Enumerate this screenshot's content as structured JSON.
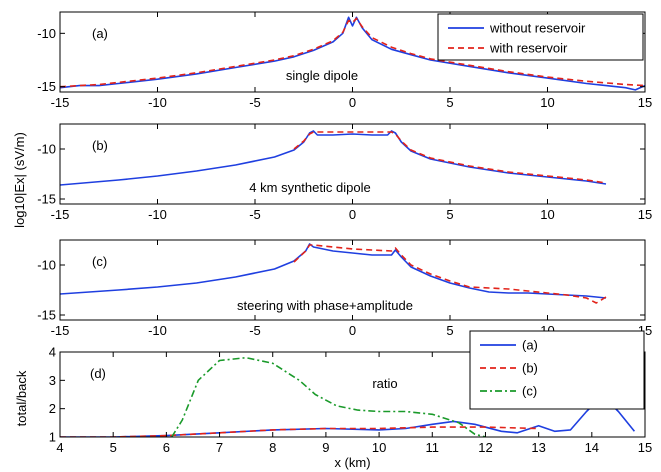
{
  "colors": {
    "blue": "#1f3fe0",
    "red": "#e2231a",
    "green": "#1a9a2a",
    "axis": "#000000"
  },
  "figure": {
    "ylabel_shared": "log10|Ex| (sV/m)"
  },
  "chart_data": [
    {
      "id": "a",
      "type": "line",
      "panel_label": "(a)",
      "annotation": "single dipole",
      "xlim": [
        -15,
        15
      ],
      "ylim": [
        -15.5,
        -8
      ],
      "xticks": [
        -15,
        -10,
        -5,
        0,
        5,
        10,
        15
      ],
      "yticks": [
        -15,
        -10
      ],
      "legend": {
        "placement": "top-right",
        "entries": [
          "without reservoir",
          "with reservoir"
        ]
      },
      "series": [
        {
          "name": "without reservoir",
          "style": "solid",
          "color": "blue",
          "x": [
            -15,
            -14,
            -13,
            -12,
            -10,
            -8,
            -6,
            -4,
            -3,
            -2,
            -1,
            -0.5,
            -0.2,
            0,
            0.2,
            0.5,
            1,
            2,
            3,
            4,
            6,
            8,
            10,
            12,
            13,
            14,
            14.5,
            15
          ],
          "y": [
            -15.1,
            -14.9,
            -14.9,
            -14.7,
            -14.3,
            -13.8,
            -13.2,
            -12.6,
            -12.2,
            -11.6,
            -10.8,
            -10.0,
            -8.5,
            -9.3,
            -8.5,
            -9.5,
            -10.6,
            -11.5,
            -12.0,
            -12.5,
            -13.1,
            -13.7,
            -14.2,
            -14.7,
            -14.9,
            -15.1,
            -15.3,
            -14.9
          ]
        },
        {
          "name": "with reservoir",
          "style": "dashed",
          "color": "red",
          "x": [
            -15,
            -13,
            -12,
            -10,
            -8,
            -6,
            -4,
            -3,
            -2,
            -1,
            -0.5,
            -0.2,
            0,
            0.2,
            0.5,
            1,
            2,
            3,
            4,
            6,
            8,
            10,
            12,
            14,
            15
          ],
          "y": [
            -15.0,
            -14.8,
            -14.6,
            -14.2,
            -13.7,
            -13.1,
            -12.5,
            -12.1,
            -11.5,
            -10.7,
            -9.9,
            -8.8,
            -9.0,
            -8.6,
            -9.4,
            -10.4,
            -11.3,
            -11.9,
            -12.4,
            -13.0,
            -13.6,
            -14.1,
            -14.5,
            -14.8,
            -14.9
          ]
        }
      ]
    },
    {
      "id": "b",
      "type": "line",
      "panel_label": "(b)",
      "annotation": "4 km synthetic dipole",
      "xlim": [
        -15,
        15
      ],
      "ylim": [
        -15.5,
        -7.5
      ],
      "xticks": [
        -15,
        -10,
        -5,
        0,
        5,
        10,
        15
      ],
      "yticks": [
        -15,
        -10
      ],
      "series": [
        {
          "name": "without reservoir",
          "style": "solid",
          "color": "blue",
          "x": [
            -15,
            -12,
            -10,
            -8,
            -6,
            -4,
            -3,
            -2.5,
            -2.2,
            -2,
            -1.8,
            -1,
            0,
            1,
            1.8,
            2,
            2.2,
            2.5,
            3,
            4,
            6,
            8,
            10,
            12,
            13
          ],
          "y": [
            -13.6,
            -13.1,
            -12.7,
            -12.2,
            -11.6,
            -10.8,
            -10.1,
            -9.3,
            -8.4,
            -8.2,
            -8.6,
            -8.6,
            -8.5,
            -8.6,
            -8.6,
            -8.2,
            -8.4,
            -9.3,
            -10.2,
            -11.0,
            -11.8,
            -12.4,
            -12.8,
            -13.2,
            -13.5
          ]
        },
        {
          "name": "with reservoir",
          "style": "dashed",
          "color": "red",
          "x": [
            -3,
            -2.5,
            -2.2,
            -2,
            -1.8,
            -1,
            0,
            1,
            1.8,
            2,
            2.2,
            2.5,
            3,
            4,
            6,
            8,
            10,
            12,
            13
          ],
          "y": [
            -10.0,
            -9.2,
            -8.5,
            -8.3,
            -8.3,
            -8.3,
            -8.3,
            -8.3,
            -8.3,
            -8.3,
            -8.5,
            -9.2,
            -10.1,
            -10.9,
            -11.7,
            -12.3,
            -12.7,
            -13.1,
            -13.4
          ]
        }
      ]
    },
    {
      "id": "c",
      "type": "line",
      "panel_label": "(c)",
      "annotation": "steering with phase+amplitude",
      "xlim": [
        -15,
        15
      ],
      "ylim": [
        -15.5,
        -7.5
      ],
      "xticks": [
        -15,
        -10,
        -5,
        0,
        5,
        10,
        15
      ],
      "yticks": [
        -15,
        -10
      ],
      "series": [
        {
          "name": "without reservoir",
          "style": "solid",
          "color": "blue",
          "x": [
            -15,
            -12,
            -10,
            -8,
            -6,
            -4,
            -3,
            -2.4,
            -2.2,
            -2,
            -1.5,
            -1,
            0,
            1,
            2,
            2.2,
            2.5,
            3,
            4,
            5,
            6,
            7,
            8,
            9,
            10,
            11,
            12,
            13
          ],
          "y": [
            -12.9,
            -12.5,
            -12.2,
            -11.8,
            -11.2,
            -10.4,
            -9.6,
            -8.6,
            -7.9,
            -8.2,
            -8.4,
            -8.6,
            -8.8,
            -9.0,
            -9.0,
            -8.5,
            -9.2,
            -10.2,
            -11.1,
            -11.8,
            -12.3,
            -12.7,
            -12.8,
            -12.8,
            -12.9,
            -13.0,
            -13.1,
            -13.3
          ]
        },
        {
          "name": "with reservoir",
          "style": "dashed",
          "color": "red",
          "x": [
            -3,
            -2.4,
            -2.2,
            -2,
            -1.5,
            -1,
            0,
            1,
            2,
            2.2,
            2.5,
            3,
            4,
            5,
            6,
            7,
            8,
            9,
            10,
            11,
            12,
            12.5,
            13
          ],
          "y": [
            -9.7,
            -8.6,
            -8.0,
            -8.0,
            -8.1,
            -8.2,
            -8.4,
            -8.5,
            -8.6,
            -8.3,
            -9.0,
            -10.0,
            -10.9,
            -11.6,
            -12.2,
            -12.3,
            -12.4,
            -12.6,
            -12.8,
            -13.0,
            -13.3,
            -13.8,
            -13.2
          ]
        }
      ]
    },
    {
      "id": "d",
      "type": "line",
      "panel_label": "(d)",
      "annotation": "ratio",
      "xlabel": "x (km)",
      "ylabel": "total/back",
      "xlim": [
        4,
        15
      ],
      "ylim": [
        1,
        4
      ],
      "xticks": [
        4,
        5,
        6,
        7,
        8,
        9,
        10,
        11,
        12,
        13,
        14,
        15
      ],
      "yticks": [
        1,
        2,
        3,
        4
      ],
      "legend": {
        "placement": "top-right",
        "entries": [
          "(a)",
          "(b)",
          "(c)"
        ]
      },
      "series": [
        {
          "name": "(a)",
          "style": "solid",
          "color": "blue",
          "x": [
            4,
            5,
            6,
            6.5,
            7,
            8,
            9,
            10,
            10.5,
            11,
            11.4,
            11.8,
            12.3,
            12.6,
            13,
            13.3,
            13.6,
            13.9,
            14.2,
            14.5,
            14.8
          ],
          "y": [
            1.0,
            1.0,
            1.05,
            1.1,
            1.15,
            1.25,
            1.3,
            1.25,
            1.3,
            1.45,
            1.55,
            1.45,
            1.2,
            1.15,
            1.4,
            1.2,
            1.25,
            1.9,
            2.45,
            1.9,
            1.2
          ]
        },
        {
          "name": "(b)",
          "style": "dashed",
          "color": "red",
          "x": [
            4,
            5,
            6,
            7,
            8,
            9,
            10,
            11,
            12,
            13
          ],
          "y": [
            1.0,
            1.0,
            1.05,
            1.15,
            1.25,
            1.3,
            1.3,
            1.35,
            1.35,
            1.3
          ]
        },
        {
          "name": "(c)",
          "style": "dashdot",
          "color": "green",
          "x": [
            6.1,
            6.3,
            6.6,
            7,
            7.5,
            8,
            8.5,
            8.8,
            9.2,
            9.6,
            10,
            10.5,
            11,
            11.5,
            11.8,
            12
          ],
          "y": [
            1.0,
            1.6,
            3.0,
            3.7,
            3.8,
            3.6,
            3.0,
            2.5,
            2.1,
            1.95,
            1.9,
            1.9,
            1.8,
            1.5,
            1.1,
            1.0
          ]
        }
      ]
    }
  ]
}
